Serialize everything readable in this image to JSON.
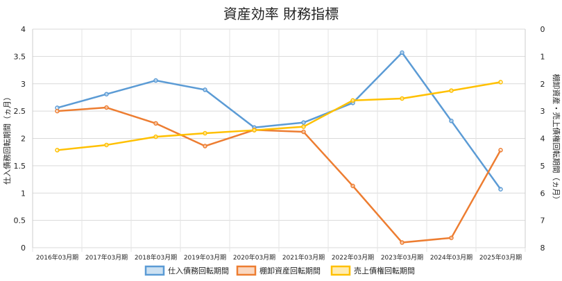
{
  "chart_data": {
    "type": "line",
    "title": "資産効率 財務指標",
    "categories": [
      "2016年03月期",
      "2017年03月期",
      "2018年03月期",
      "2019年03月期",
      "2020年03月期",
      "2021年03月期",
      "2022年03月期",
      "2023年03月期",
      "2024年03月期",
      "2025年03月期"
    ],
    "ylabel_left": "仕入債務回転期間（ヵ月）",
    "ylabel_right": "棚卸資産・売上債権回転期間（ヵ月）",
    "ylim_left": [
      0,
      4
    ],
    "yticks_left": [
      "0",
      "0.5",
      "1",
      "1.5",
      "2",
      "2.5",
      "3",
      "3.5",
      "4"
    ],
    "ylim_right": [
      0,
      8
    ],
    "right_axis_inverted": true,
    "yticks_right": [
      "0",
      "1",
      "2",
      "3",
      "4",
      "5",
      "6",
      "7",
      "8"
    ],
    "grid": true,
    "legend_position": "bottom",
    "series": [
      {
        "name": "仕入債務回転期間",
        "axis": "left",
        "color": "#5b9bd5",
        "values": [
          2.56,
          2.81,
          3.06,
          2.89,
          2.2,
          2.29,
          2.65,
          3.57,
          2.32,
          1.07
        ]
      },
      {
        "name": "棚卸資産回転期間",
        "axis": "right",
        "color": "#ed7d31",
        "values": [
          3.0,
          2.87,
          3.45,
          4.28,
          3.69,
          3.76,
          5.74,
          7.81,
          7.64,
          4.43
        ]
      },
      {
        "name": "売上債権回転期間",
        "axis": "right",
        "color": "#ffc000",
        "values": [
          4.43,
          4.24,
          3.94,
          3.81,
          3.7,
          3.57,
          2.61,
          2.54,
          2.25,
          1.94
        ]
      }
    ]
  }
}
